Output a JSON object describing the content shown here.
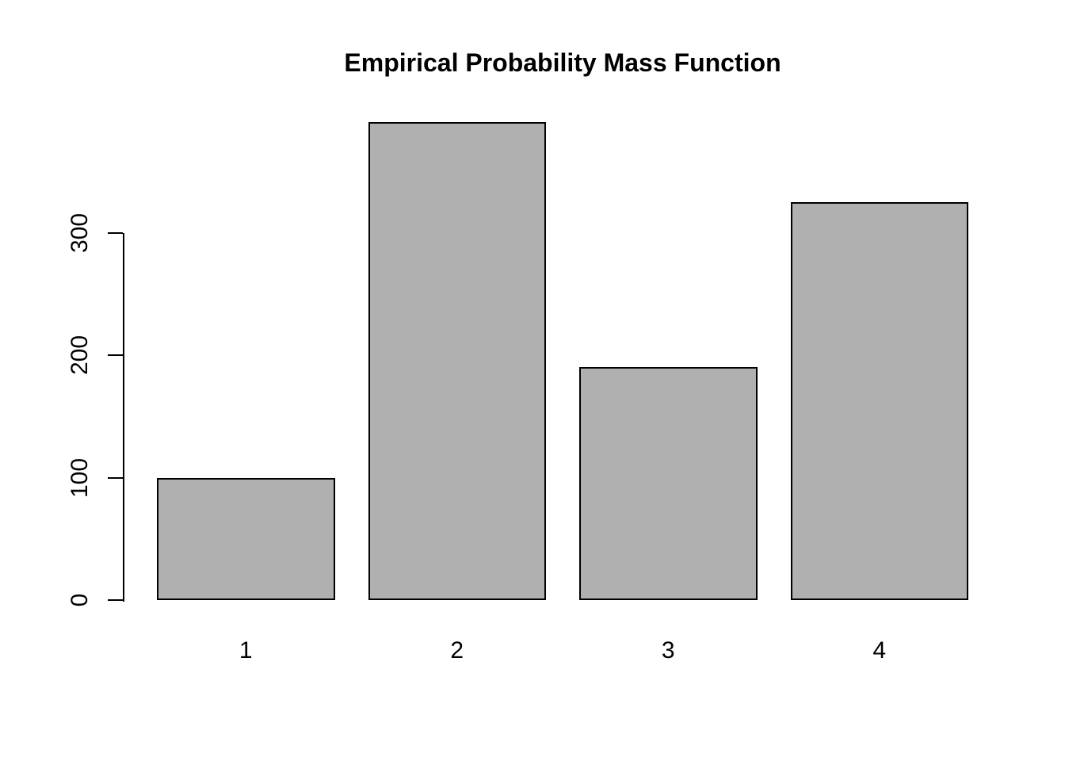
{
  "chart_data": {
    "type": "bar",
    "title": "Empirical Probability Mass Function",
    "xlabel": "",
    "ylabel": "",
    "categories": [
      "1",
      "2",
      "3",
      "4"
    ],
    "values": [
      100,
      390,
      190,
      325
    ],
    "yticks": [
      0,
      100,
      200,
      300
    ],
    "ylim": [
      0,
      390
    ],
    "grid": false,
    "legend": "none",
    "bar_fill_color": "#b0b0b0",
    "bar_border_color": "#000000",
    "axis_color": "#000000",
    "background_color": "#ffffff"
  }
}
